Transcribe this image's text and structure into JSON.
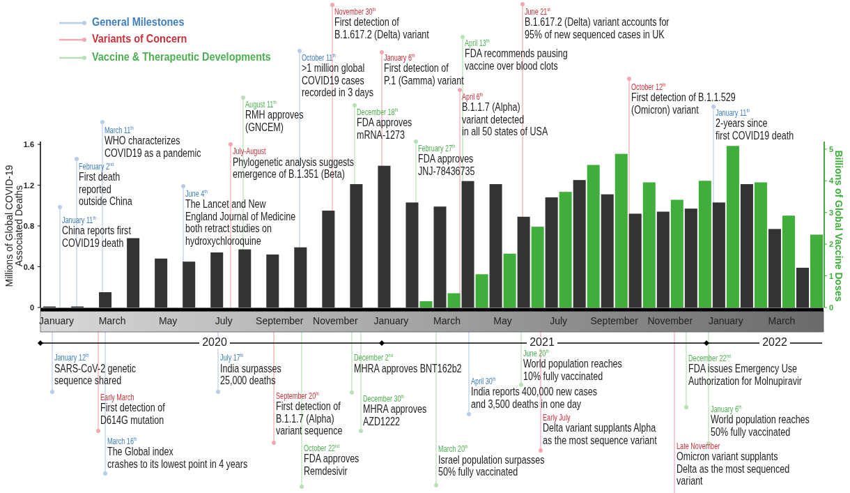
{
  "chart_data": {
    "type": "bar",
    "categories": [
      "January",
      null,
      "March",
      null,
      "May",
      null,
      "July",
      null,
      "September",
      null,
      "November",
      null,
      "January",
      null,
      "March",
      null,
      "May",
      null,
      "July",
      null,
      "September",
      null,
      "November",
      null,
      "January",
      null,
      "March",
      null
    ],
    "series": [
      {
        "color": "#333333",
        "values": [
          0.01,
          0.01,
          0.15,
          0.68,
          0.48,
          0.45,
          0.54,
          0.57,
          0.52,
          0.59,
          0.95,
          1.21,
          1.39,
          1.03,
          0.99,
          1.24,
          1.21,
          0.89,
          1.08,
          1.25,
          1.11,
          0.92,
          0.94,
          0.97,
          1.03,
          1.21,
          0.77,
          0.39
        ]
      },
      {
        "color": "#3fae3a",
        "axis": "y2",
        "values": [
          null,
          null,
          null,
          null,
          null,
          null,
          null,
          null,
          null,
          null,
          null,
          null,
          null,
          0.2,
          0.45,
          1.05,
          1.7,
          2.55,
          3.65,
          4.5,
          4.85,
          3.95,
          3.4,
          4.0,
          5.1,
          3.95,
          2.9,
          2.3
        ]
      }
    ],
    "ylim": [
      0,
      1.6
    ],
    "yticks": [
      0,
      0.4,
      0.8,
      1.2,
      1.6
    ],
    "y2lim": [
      0,
      5.15
    ],
    "y2ticks": [
      0,
      1,
      2,
      3,
      4,
      5
    ],
    "ylabel": "Millions of Global COVID-19\nAssociated Deaths",
    "y2label": "Billions of Global Vaccine Doses",
    "annotations": [
      "General Milestones",
      "Variants of Concern",
      "Vaccine & Therapeutic Developments",
      "January 11$^{th}$\nChina reports first\nCOVID19 death",
      "February 2$^{nd}$\nFirst death\nreported\noutside China",
      "March 11$^{th}$\nWHO characterizes\nCOVID19 as a pandemic",
      "June 4$^{th}$\nThe Lancet and New\nEngland Journal of Medicine\nboth retract studies on\nhydroxychloroquine",
      "July-August\nPhylogenetic analysis suggests\nemergence of B.1.351 (Beta)",
      "August 11$^{th}$\nRMH approves\n(GNCEM)",
      "October 11$^{th}$\n>1 million global\nCOVID19 cases\nrecorded in 3 days",
      "November 30$^{th}$\nFirst detection of\nB.1.617.2 (Delta) variant",
      "December 18$^{th}$\nFDA approves\nmRNA-1273",
      "January 6$^{th}$\nFirst detection of\nP.1 (Gamma) variant",
      "February 27$^{th}$\nFDA approves\nJNJ-78436735",
      "April 6$^{th}$\nB.1.1.7 (Alpha)\nvariant detected\nin all 50 states of USA",
      "April 13$^{th}$\nFDA recommends pausing\nvaccine over blood clots",
      "June 21$^{st}$\nB.1.617.2 (Delta) variant accounts for\n95% of new sequenced cases in UK",
      "October 12$^{th}$\nFirst detection of B.1.1.529\n(Omicron) variant",
      "January 11$^{th}$\n2-years since\nfirst COVID19 death",
      "January 12$^{th}$\nSARS-CoV-2 genetic\nsequence shared",
      "Early March\nFirst detection of\nD614G mutation",
      "March 16$^{th}$\nThe Global index\ncrashes to its lowest point in 4 years",
      "July 17$^{th}$\nIndia surpasses\n25,000 deaths",
      "September 20$^{th}$\nFirst detection of\nB.1.1.7 (Alpha)\nvariant sequence",
      "October 22$^{nd}$\nFDA approves\nRemdesivir",
      "December 2$^{nd}$\nMHRA approves BNT162b2",
      "December 30$^{th}$\nMHRA approves\nAZD1222",
      "March 20$^{th}$\nIsrael population surpasses\n50% fully vaccinated",
      "April 30$^{th}$\nIndia reports 400,000 new cases\nand 3,500 deaths in one day",
      "June 20$^{th}$\nWorld population reaches\n10% fully vaccinated",
      "Early July\nDelta variant supplants Alpha\nas the most sequence variant",
      "Late November\nOmicron variant supplants\nDelta as the most sequenced\nvariant",
      "December 22$^{nd}$\nFDA issues Emergency Use\nAuthorization for Molnupiravir",
      "January 6$^{th}$\nWorld population reaches\n50% fully vaccinated",
      "2020",
      "2021",
      "2022"
    ]
  }
}
